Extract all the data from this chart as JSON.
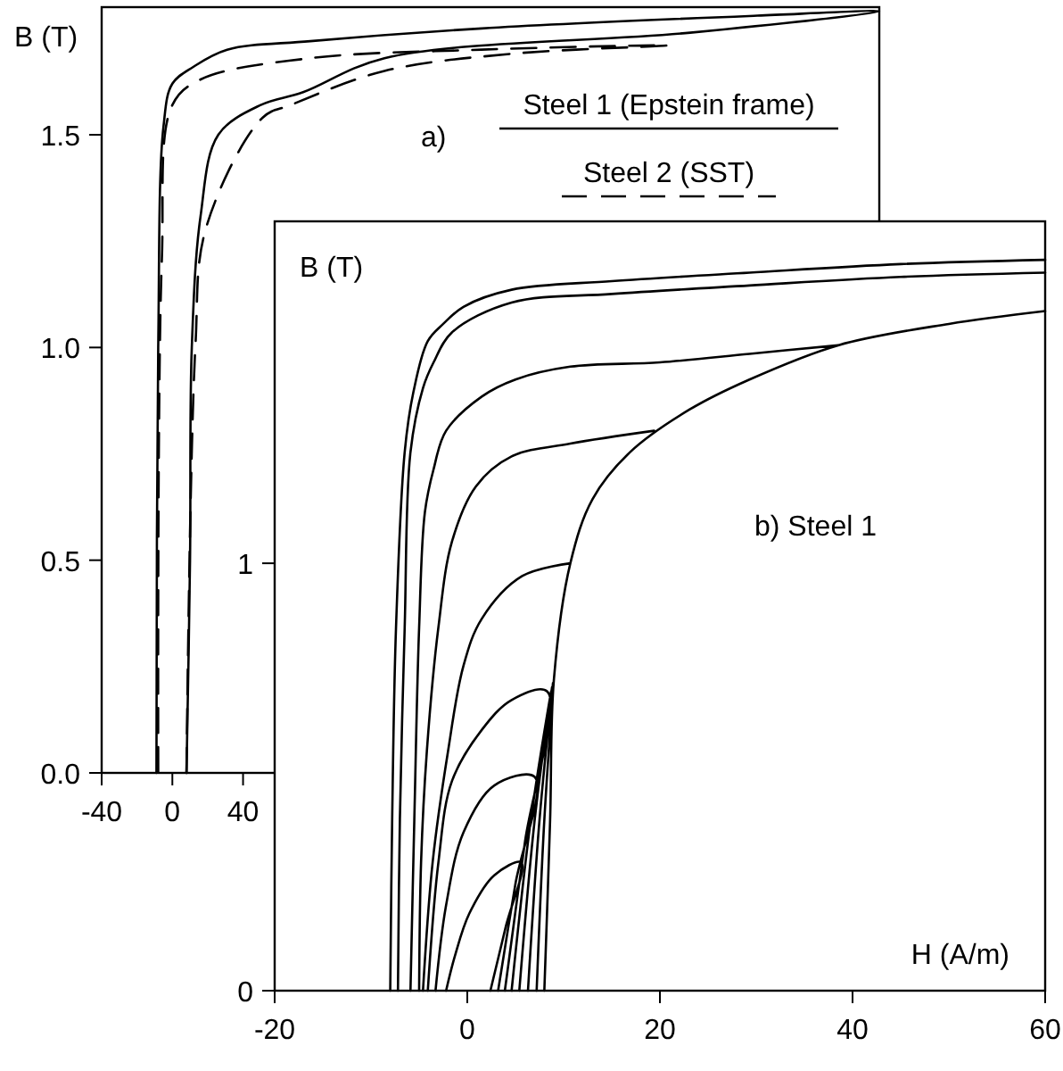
{
  "chart_data": [
    {
      "type": "line",
      "ylabel": "B (T)",
      "annotations": [
        "a)"
      ],
      "legend": "top right",
      "xlim": [
        -40,
        400
      ],
      "xticks": [
        -40,
        0,
        40
      ],
      "ylim": [
        0,
        1.8
      ],
      "yticks": [
        {
          "value": 0,
          "label": "0.0"
        },
        {
          "value": 0.5,
          "label": "0.5"
        },
        {
          "value": 1,
          "label": "1.0"
        },
        {
          "value": 1.5,
          "label": "1.5"
        }
      ],
      "series": [
        {
          "name": "Steel 1 (Epstein frame)",
          "color": "#000000",
          "line_style": "solid",
          "x": [
            8,
            10,
            11,
            16,
            26,
            50,
            74,
            120,
            293,
            400,
            331,
            175,
            78,
            31,
            12,
            0,
            -5,
            -8,
            -9
          ],
          "values": [
            0,
            0.5,
            1.0,
            1.31,
            1.5,
            1.57,
            1.6,
            1.68,
            1.74,
            1.79,
            1.78,
            1.75,
            1.72,
            1.7,
            1.66,
            1.62,
            1.52,
            1.0,
            0
          ]
        },
        {
          "name": "Steel 2 (SST)",
          "color": "#000000",
          "line_style": "dashed",
          "x": [
            8,
            13,
            19,
            51,
            67,
            120,
            191,
            280,
            175,
            78,
            16,
            0,
            -6,
            -8
          ],
          "values": [
            0,
            1.0,
            1.28,
            1.54,
            1.57,
            1.65,
            1.69,
            1.71,
            1.7,
            1.68,
            1.63,
            1.57,
            1.2,
            0
          ]
        }
      ]
    },
    {
      "type": "line",
      "ylabel": "B (T)",
      "xlabel": "H (A/m)",
      "annotations": [
        "b) Steel 1"
      ],
      "xlim": [
        -20,
        60
      ],
      "xticks": [
        -20,
        0,
        20,
        40,
        60
      ],
      "ylim": [
        0,
        1.8
      ],
      "yticks": [
        0,
        1
      ],
      "series": [
        {
          "color": "#000000",
          "x": [
            8,
            8.6,
            9,
            10.7,
            13,
            16.9,
            23.1,
            29.3,
            38.5,
            50,
            60,
            null,
            60,
            45,
            29.3,
            15,
            4.6,
            -0.4,
            -2.5,
            -4.1,
            -5.6,
            -6.5,
            -7.4,
            -7.8,
            -8,
            null,
            7.2,
            8,
            9,
            null,
            60,
            45,
            29.3,
            15,
            4.6,
            -1.6,
            -3.5,
            -4.6,
            -5.9,
            -6.5,
            -7,
            -7.2,
            null,
            6.3,
            7.5,
            8.9,
            null,
            38.5,
            29.3,
            20,
            10.7,
            5,
            1.5,
            -2.2,
            -3.5,
            -4.4,
            -5,
            -5.5,
            -5.9,
            null,
            5.4,
            7,
            8.8,
            null,
            19.4,
            10.7,
            4.6,
            0.9,
            -1.6,
            -3,
            -4.2,
            -4.8,
            -5,
            null,
            4.6,
            6.6,
            8.7,
            null,
            10.7,
            5.7,
            1.5,
            -0.4,
            -2,
            -3.6,
            -4.6,
            null,
            3.9,
            6,
            8.3,
            4.6,
            1.5,
            -1.6,
            -3,
            -4.1,
            null,
            3.2,
            5,
            7,
            2.8,
            -0.4,
            -2.2,
            -3.3,
            null,
            2.4,
            4,
            5.6,
            2.8,
            0.2,
            -1.3,
            -2.2
          ],
          "values": [
            0,
            0.4,
            0.73,
            1.0,
            1.15,
            1.26,
            1.36,
            1.43,
            1.51,
            1.56,
            1.59,
            null,
            1.71,
            1.7,
            1.68,
            1.66,
            1.64,
            1.6,
            1.56,
            1.52,
            1.4,
            1.26,
            0.85,
            0.4,
            0,
            null,
            0,
            0.4,
            0.73,
            null,
            1.68,
            1.67,
            1.65,
            1.63,
            1.61,
            1.54,
            1.47,
            1.41,
            1.26,
            0.85,
            0.4,
            0,
            null,
            0,
            0.4,
            0.72,
            null,
            1.51,
            1.49,
            1.47,
            1.46,
            1.43,
            1.39,
            1.31,
            1.22,
            1.12,
            0.85,
            0.4,
            0,
            null,
            0,
            0.4,
            0.71,
            null,
            1.31,
            1.28,
            1.25,
            1.18,
            1.05,
            0.85,
            0.56,
            0.3,
            0,
            null,
            0,
            0.4,
            0.7,
            null,
            1.0,
            0.97,
            0.87,
            0.76,
            0.56,
            0.3,
            0,
            null,
            0,
            0.35,
            0.7,
            0.68,
            0.61,
            0.49,
            0.3,
            0,
            null,
            0,
            0.25,
            0.5,
            0.48,
            0.37,
            0.2,
            0,
            null,
            0,
            0.15,
            0.3,
            0.27,
            0.18,
            0.08,
            0
          ]
        }
      ]
    }
  ]
}
